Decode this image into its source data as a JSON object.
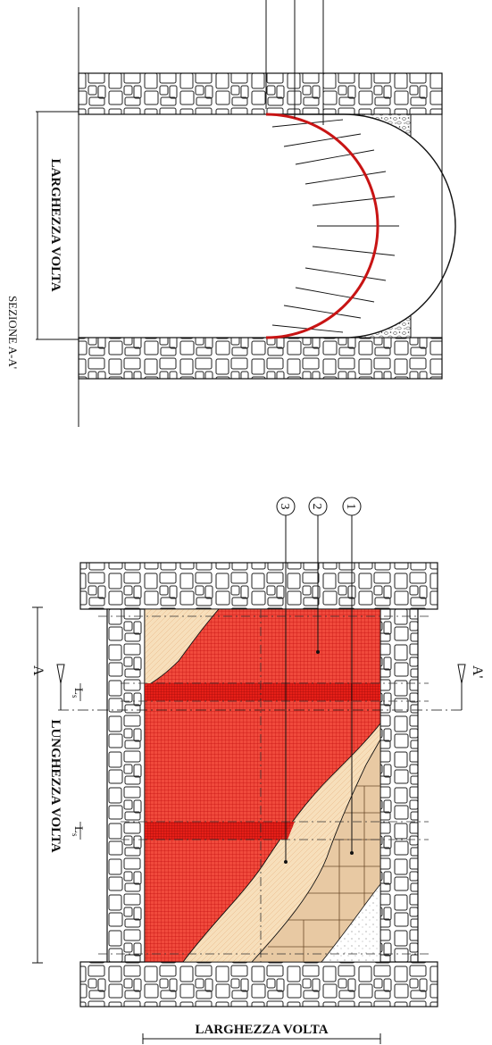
{
  "colors": {
    "ink": "#1a1a1a",
    "stone_fill": "#ffffff",
    "frp_mesh": "#e8211f",
    "frp_mesh_dark": "#cc1010",
    "mortar_layer": "#f6dcb7",
    "brick": "#e8c9a3",
    "arch_line": "#c81414"
  },
  "section_view": {
    "title": "SEZIONE A-A'",
    "width_label": "LARGHEZZA VOLTA"
  },
  "plan_view": {
    "length_label": "LUNGHEZZA VOLTA",
    "width_label": "LARGHEZZA VOLTA",
    "section_mark_left": "A",
    "section_mark_right": "A'",
    "strip_width_label_1": "L",
    "strip_width_sub_1": "s",
    "strip_width_label_2": "L",
    "strip_width_sub_2": "s",
    "callouts": [
      "1",
      "2",
      "3"
    ]
  }
}
